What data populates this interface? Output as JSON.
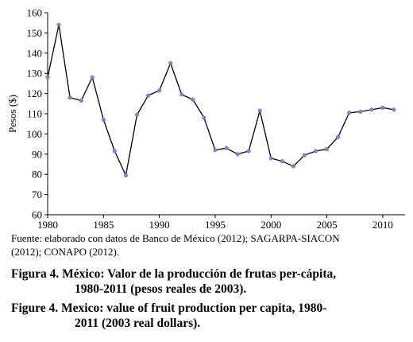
{
  "chart_data": {
    "type": "line",
    "ylabel": "Pesos ($)",
    "xlabel": "",
    "xlim": [
      1980,
      2012
    ],
    "ylim": [
      60,
      160
    ],
    "x_ticks": [
      "1980",
      "1985",
      "1990",
      "1995",
      "2000",
      "2005",
      "2010"
    ],
    "y_ticks": [
      "60",
      "70",
      "80",
      "90",
      "100",
      "110",
      "120",
      "130",
      "140",
      "150",
      "160"
    ],
    "grid": false,
    "series": [
      {
        "x": [
          1980,
          1981,
          1982,
          1983,
          1984,
          1985,
          1986,
          1987,
          1988,
          1989,
          1990,
          1991,
          1992,
          1993,
          1994,
          1995,
          1996,
          1997,
          1998,
          1999,
          2000,
          2001,
          2002,
          2003,
          2004,
          2005,
          2006,
          2007,
          2008,
          2009,
          2010,
          2011
        ],
        "values": [
          128,
          154,
          118,
          116.5,
          128,
          107,
          91.5,
          79.5,
          109.5,
          119,
          121.5,
          135,
          119.5,
          117,
          108,
          92,
          93,
          90,
          91.5,
          111.5,
          88,
          86.5,
          84,
          89.5,
          91.5,
          92.5,
          98.5,
          110.5,
          111,
          112,
          113,
          112
        ],
        "color": "#000000",
        "marker_color": "#8a86c4"
      }
    ]
  },
  "source_note": {
    "line1": "Fuente: elaborado con datos de Banco de México (2012); SAGARPA-SIACON",
    "line2": "(2012); CONAPO (2012)."
  },
  "caption_es": {
    "line1": "Figura 4. México: Valor de la producción de frutas per-cápita,",
    "line2": "1980-2011 (pesos reales de 2003)."
  },
  "caption_en": {
    "line1": "Figure 4. Mexico: value of fruit production per capita, 1980-",
    "line2": "2011 (2003 real dollars)."
  }
}
